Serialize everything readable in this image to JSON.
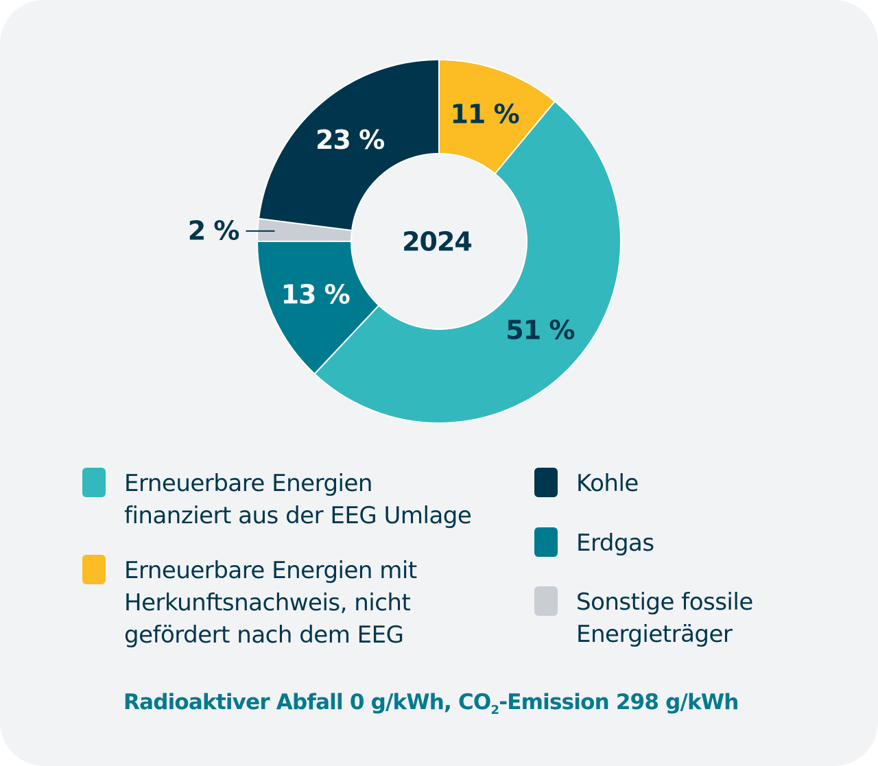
{
  "chart_data": {
    "type": "pie",
    "variant": "donut",
    "center_label": "2024",
    "start": "top",
    "direction": "clockwise",
    "slices": [
      {
        "label": "Erneuerbare Energien mit Herkunftsnachweis, nicht gefördert nach dem EEG",
        "value": 11,
        "display": "11 %",
        "color": "#fbbc24",
        "text_color": "#00364d"
      },
      {
        "label": "Erneuerbare Energien finanziert aus der EEG Umlage",
        "value": 51,
        "display": "51 %",
        "color": "#33b8bd",
        "text_color": "#00364d"
      },
      {
        "label": "Erdgas",
        "value": 13,
        "display": "13 %",
        "color": "#007a8f",
        "text_color": "#ffffff"
      },
      {
        "label": "Sonstige fossile Energieträger",
        "value": 2,
        "display": "2 %",
        "color": "#c8ced3",
        "text_color": "#00364d",
        "outside": true
      },
      {
        "label": "Kohle",
        "value": 23,
        "display": "23 %",
        "color": "#00364d",
        "text_color": "#ffffff"
      }
    ]
  },
  "legend": {
    "left": [
      {
        "lines": [
          "Erneuerbare Energien",
          "finanziert aus der EEG Umlage"
        ],
        "color": "#33b8bd"
      },
      {
        "lines": [
          "Erneuerbare Energien mit",
          "Herkunftsnachweis, nicht",
          "gefördert nach dem EEG"
        ],
        "color": "#fbbc24"
      }
    ],
    "right": [
      {
        "lines": [
          "Kohle"
        ],
        "color": "#00364d"
      },
      {
        "lines": [
          "Erdgas"
        ],
        "color": "#007a8f"
      },
      {
        "lines": [
          "Sonstige fossile",
          "Energieträger"
        ],
        "color": "#c8ced3"
      }
    ]
  },
  "footer": {
    "part1": "Radioaktiver Abfall 0 g/kWh, CO",
    "sub": "2",
    "part2": "-Emission 298 g/kWh"
  }
}
